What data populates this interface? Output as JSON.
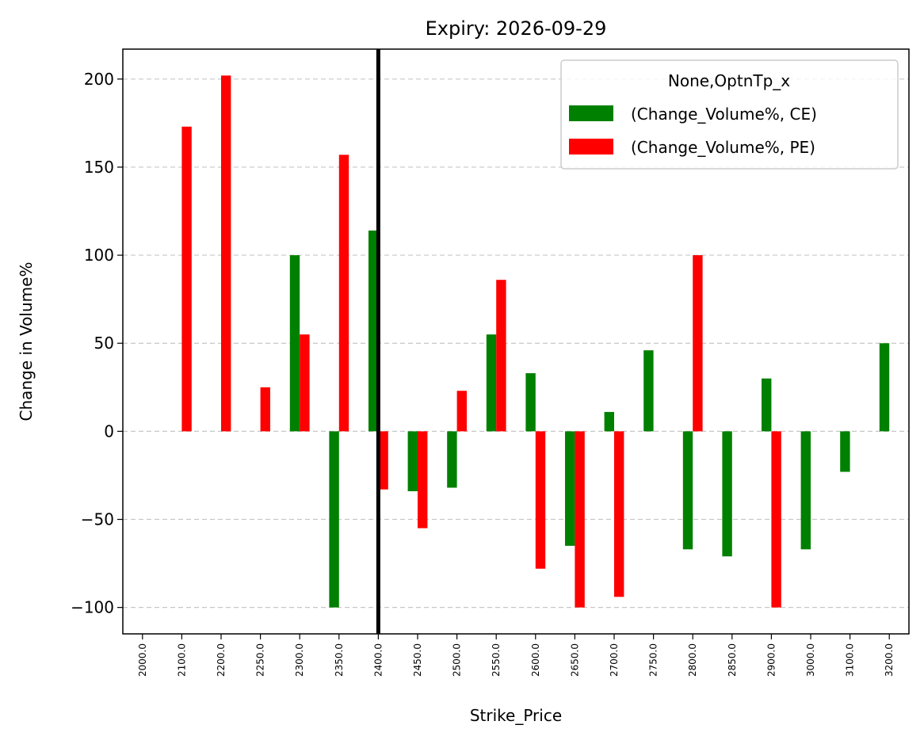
{
  "chart_data": {
    "type": "bar",
    "title": "Expiry: 2026-09-29",
    "xlabel": "Strike_Price",
    "ylabel": "Change in Volume%",
    "ylim": [
      -115,
      217
    ],
    "yticks": [
      200,
      150,
      100,
      50,
      0,
      -50,
      -100
    ],
    "ytick_labels": [
      "200",
      "150",
      "100",
      "50",
      "0",
      "−50",
      "−100"
    ],
    "grid": "y-dashed",
    "categories": [
      "2000.0",
      "2100.0",
      "2200.0",
      "2250.0",
      "2300.0",
      "2350.0",
      "2400.0",
      "2450.0",
      "2500.0",
      "2550.0",
      "2600.0",
      "2650.0",
      "2700.0",
      "2750.0",
      "2800.0",
      "2850.0",
      "2900.0",
      "3000.0",
      "3100.0",
      "3200.0"
    ],
    "series": [
      {
        "name": "(Change_Volume%, CE)",
        "color": "#008000",
        "values": [
          null,
          null,
          null,
          null,
          100,
          -100,
          114,
          -34,
          -32,
          55,
          33,
          -65,
          11,
          46,
          -67,
          -71,
          30,
          -67,
          -23,
          50
        ]
      },
      {
        "name": "(Change_Volume%, PE)",
        "color": "#ff0000",
        "values": [
          null,
          173,
          202,
          25,
          55,
          157,
          -33,
          -55,
          23,
          86,
          -78,
          -100,
          -94,
          null,
          100,
          null,
          -100,
          null,
          null,
          null
        ]
      }
    ],
    "vline_at_category": "2400.0",
    "legend": {
      "title": "None,OptnTp_x",
      "position": "top-right"
    }
  }
}
